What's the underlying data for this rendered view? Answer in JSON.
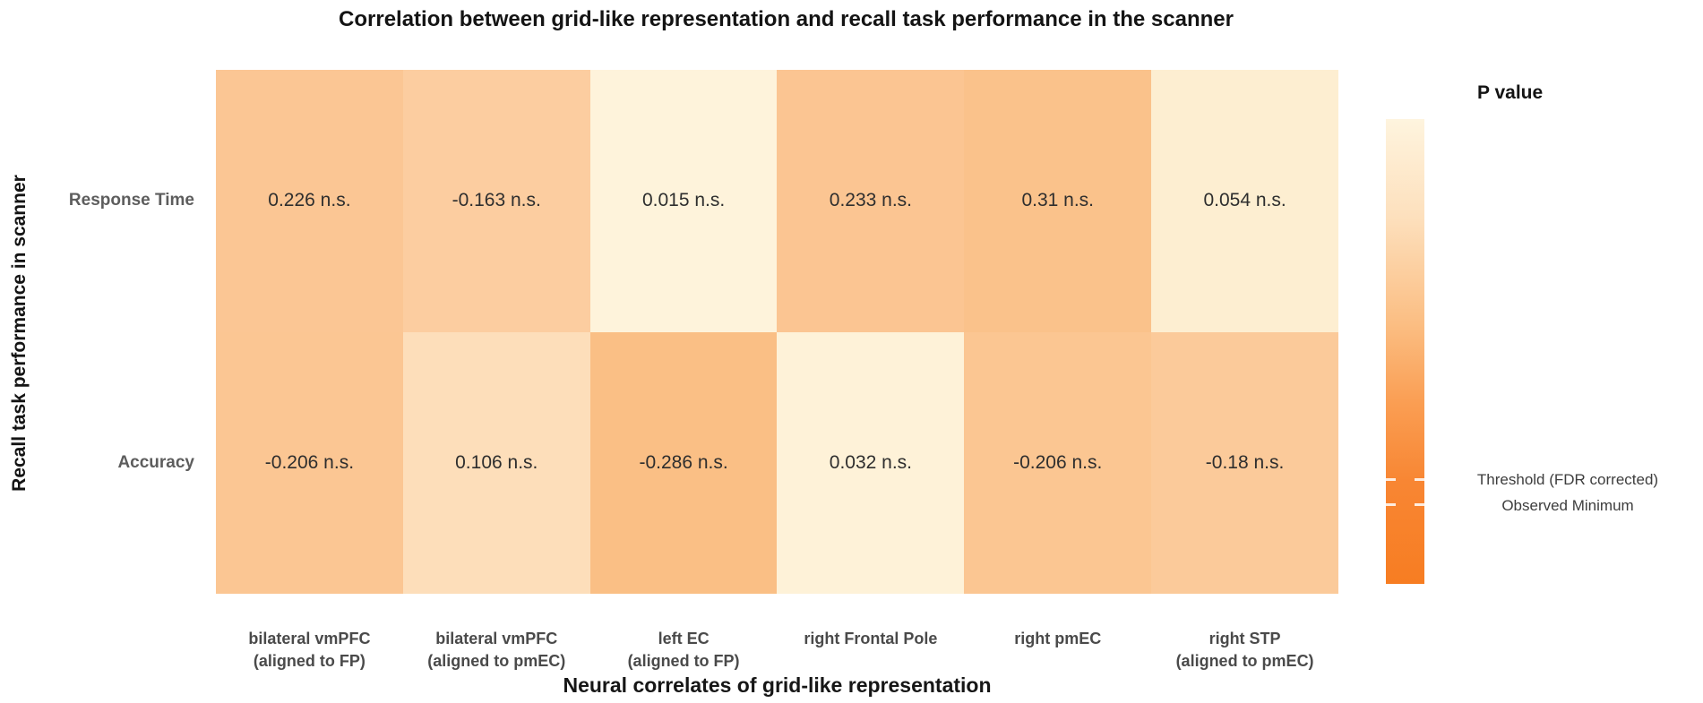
{
  "chart_data": {
    "type": "heatmap",
    "title": "Correlation between grid-like representation and recall task performance in the scanner",
    "xlabel": "Neural correlates of grid-like representation",
    "ylabel": "Recall task performance in scanner",
    "grid": false,
    "rows": [
      "Response Time",
      "Accuracy"
    ],
    "x_categories": [
      "bilateral vmPFC (aligned to FP)",
      "bilateral vmPFC (aligned to pmEC)",
      "left EC (aligned to FP)",
      "right Frontal Pole",
      "right pmEC",
      "right STP (aligned to pmEC)"
    ],
    "columns": [
      {
        "line1": "bilateral vmPFC",
        "line2": "(aligned to FP)"
      },
      {
        "line1": "bilateral vmPFC",
        "line2": "(aligned to pmEC)"
      },
      {
        "line1": "left EC",
        "line2": "(aligned to FP)"
      },
      {
        "line1": "right Frontal Pole",
        "line2": ""
      },
      {
        "line1": "right pmEC",
        "line2": ""
      },
      {
        "line1": "right STP",
        "line2": "(aligned to pmEC)"
      }
    ],
    "series": [
      {
        "name": "Response Time",
        "values": [
          0.226,
          -0.163,
          0.015,
          0.233,
          0.31,
          0.054
        ]
      },
      {
        "name": "Accuracy",
        "values": [
          -0.206,
          0.106,
          -0.286,
          0.032,
          -0.206,
          -0.18
        ]
      }
    ],
    "cells": [
      [
        {
          "value": 0.226,
          "sig": "n.s.",
          "label": "0.226 n.s.",
          "color": "#FBC694"
        },
        {
          "value": -0.163,
          "sig": "n.s.",
          "label": "-0.163 n.s.",
          "color": "#FCCDA0"
        },
        {
          "value": 0.015,
          "sig": "n.s.",
          "label": "0.015 n.s.",
          "color": "#FEF3DB"
        },
        {
          "value": 0.233,
          "sig": "n.s.",
          "label": "0.233 n.s.",
          "color": "#FBC592"
        },
        {
          "value": 0.31,
          "sig": "n.s.",
          "label": "0.31 n.s.",
          "color": "#FAC28B"
        },
        {
          "value": 0.054,
          "sig": "n.s.",
          "label": "0.054 n.s.",
          "color": "#FDEED1"
        }
      ],
      [
        {
          "value": -0.206,
          "sig": "n.s.",
          "label": "-0.206 n.s.",
          "color": "#FBC693"
        },
        {
          "value": 0.106,
          "sig": "n.s.",
          "label": "0.106 n.s.",
          "color": "#FDDEBA"
        },
        {
          "value": -0.286,
          "sig": "n.s.",
          "label": "-0.286 n.s.",
          "color": "#FABF85"
        },
        {
          "value": 0.032,
          "sig": "n.s.",
          "label": "0.032 n.s.",
          "color": "#FEF2D8"
        },
        {
          "value": -0.206,
          "sig": "n.s.",
          "label": "-0.206 n.s.",
          "color": "#FBC692"
        },
        {
          "value": -0.18,
          "sig": "n.s.",
          "label": "-0.18 n.s.",
          "color": "#FBCA9A"
        }
      ]
    ],
    "legend": {
      "title": "P value",
      "position": "right",
      "gradient": [
        {
          "pos": 0,
          "color": "#FEF4DE"
        },
        {
          "pos": 0.21,
          "color": "#FDE0BD"
        },
        {
          "pos": 0.44,
          "color": "#FBBE83"
        },
        {
          "pos": 0.61,
          "color": "#FA9E53"
        },
        {
          "pos": 0.78,
          "color": "#F88633"
        },
        {
          "pos": 1,
          "color": "#F77D22"
        }
      ],
      "ticks": [
        "Threshold (FDR corrected)",
        "Observed Minimum"
      ]
    }
  }
}
